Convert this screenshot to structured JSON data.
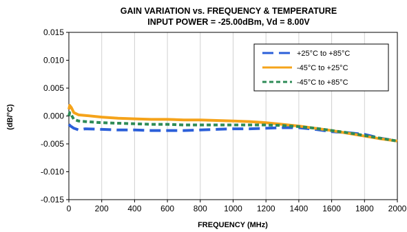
{
  "chart_data": {
    "type": "line",
    "title": "GAIN VARIATION vs. FREQUENCY & TEMPERATURE",
    "subtitle": "INPUT POWER = -25.00dBm, Vd = 8.00V",
    "xlabel": "FREQUENCY (MHz)",
    "ylabel": "(dB/°C)",
    "xlim": [
      0,
      2000
    ],
    "ylim": [
      -0.015,
      0.015
    ],
    "xticks": [
      "0",
      "200",
      "400",
      "600",
      "800",
      "1000",
      "1200",
      "1400",
      "1600",
      "1800",
      "2000"
    ],
    "yticks": [
      "-0.015",
      "-0.010",
      "-0.005",
      "0.000",
      "0.005",
      "0.010",
      "0.015"
    ],
    "grid": "vertical",
    "legend_position": "top-right",
    "series": [
      {
        "name": "+25°C to +85°C",
        "color": "#2b5fd9",
        "style": "long-dash",
        "x": [
          0,
          10,
          30,
          60,
          100,
          200,
          300,
          400,
          500,
          600,
          700,
          800,
          900,
          1000,
          1100,
          1200,
          1300,
          1400,
          1500,
          1600,
          1700,
          1800,
          1900,
          2000
        ],
        "y": [
          -0.0015,
          -0.0018,
          -0.0022,
          -0.0025,
          -0.0023,
          -0.0024,
          -0.0025,
          -0.0025,
          -0.0026,
          -0.0026,
          -0.0026,
          -0.0025,
          -0.0024,
          -0.0023,
          -0.0023,
          -0.0022,
          -0.0021,
          -0.0021,
          -0.0024,
          -0.0028,
          -0.003,
          -0.0033,
          -0.004,
          -0.0045
        ]
      },
      {
        "name": "-45°C to +25°C",
        "color": "#f5a31a",
        "style": "solid",
        "x": [
          0,
          5,
          15,
          30,
          60,
          100,
          200,
          300,
          400,
          500,
          600,
          700,
          800,
          900,
          1000,
          1100,
          1200,
          1300,
          1400,
          1500,
          1600,
          1700,
          1800,
          1900,
          2000
        ],
        "y": [
          0.0012,
          0.0019,
          0.0015,
          0.0006,
          0.0002,
          0.0001,
          -0.0002,
          -0.0004,
          -0.0005,
          -0.0006,
          -0.0006,
          -0.0007,
          -0.0007,
          -0.0008,
          -0.0009,
          -0.001,
          -0.0012,
          -0.0015,
          -0.0018,
          -0.0022,
          -0.0026,
          -0.0031,
          -0.0036,
          -0.0041,
          -0.0045
        ]
      },
      {
        "name": "-45°C to +85°C",
        "color": "#2e8b57",
        "style": "short-dash",
        "x": [
          0,
          5,
          15,
          30,
          60,
          100,
          200,
          300,
          400,
          500,
          600,
          700,
          800,
          900,
          1000,
          1100,
          1200,
          1300,
          1400,
          1500,
          1600,
          1700,
          1800,
          1900,
          2000
        ],
        "y": [
          0.0,
          0.0006,
          0.0002,
          -0.0006,
          -0.0009,
          -0.001,
          -0.0012,
          -0.0013,
          -0.0014,
          -0.0015,
          -0.0015,
          -0.0016,
          -0.0016,
          -0.0016,
          -0.0016,
          -0.0016,
          -0.0016,
          -0.0017,
          -0.0019,
          -0.0022,
          -0.0026,
          -0.003,
          -0.0035,
          -0.004,
          -0.0045
        ]
      }
    ]
  }
}
